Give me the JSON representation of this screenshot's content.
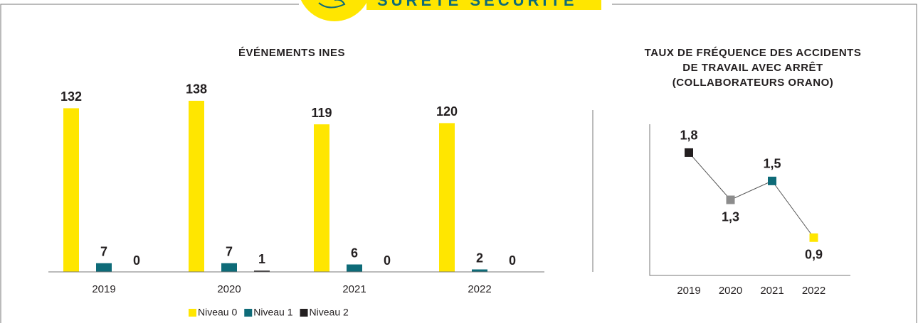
{
  "header": {
    "title": "SÛRETÉ SÉCURITÉ"
  },
  "chart_data": [
    {
      "type": "bar",
      "title": "ÉVÉNEMENTS INES",
      "categories": [
        "2019",
        "2020",
        "2021",
        "2022"
      ],
      "series": [
        {
          "name": "Niveau 0",
          "color": "#ffe600",
          "values": [
            132,
            138,
            119,
            120
          ]
        },
        {
          "name": "Niveau 1",
          "color": "#0e6b78",
          "values": [
            7,
            7,
            6,
            2
          ]
        },
        {
          "name": "Niveau 2",
          "color": "#231f20",
          "values": [
            0,
            1,
            0,
            0
          ]
        }
      ],
      "ylim": [
        0,
        150
      ],
      "legend": "bottom"
    },
    {
      "type": "line",
      "title": [
        "TAUX DE FRÉQUENCE DES ACCIDENTS",
        "DE TRAVAIL AVEC ARRÊT",
        "(COLLABORATEURS ORANO)"
      ],
      "categories": [
        "2019",
        "2020",
        "2021",
        "2022"
      ],
      "values": [
        1.8,
        1.3,
        1.5,
        0.9
      ],
      "value_labels": [
        "1,8",
        "1,3",
        "1,5",
        "0,9"
      ],
      "colors": [
        "#231f20",
        "#8c8c8c",
        "#0e6b78",
        "#ffe600"
      ],
      "line_color": "#555555",
      "ylim": [
        0.5,
        2.1
      ]
    }
  ]
}
